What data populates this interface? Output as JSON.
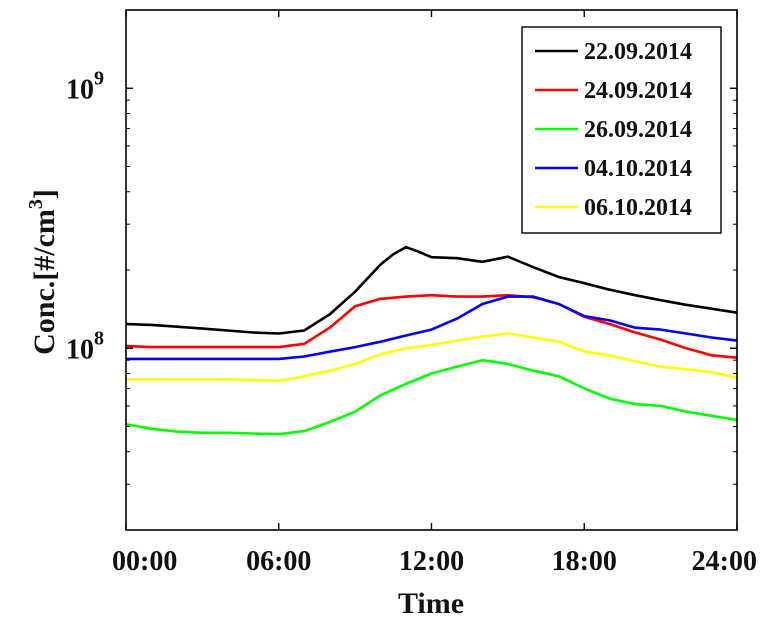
{
  "chart_data": {
    "type": "line",
    "xlabel": "Time",
    "ylabel_main": "Conc.[#/cm",
    "ylabel_sup": "3",
    "ylabel_close": "]",
    "y_scale": "log",
    "xlim": [
      0,
      24
    ],
    "ylim": [
      20000000,
      2000000000
    ],
    "x_ticks": [
      0,
      6,
      12,
      18,
      24
    ],
    "x_tick_labels": [
      "00:00",
      "06:00",
      "12:00",
      "18:00",
      "24:00"
    ],
    "y_tick_labels": [
      {
        "value": 100000000,
        "base": "10",
        "exp": "8"
      },
      {
        "value": 1000000000,
        "base": "10",
        "exp": "9"
      }
    ],
    "grid": false,
    "legend_placement": "top-right",
    "series": [
      {
        "name": "22.09.2014",
        "color": "#000000",
        "x": [
          0,
          1,
          2,
          3,
          4,
          5,
          6,
          7,
          8,
          9,
          10,
          10.5,
          11,
          11.5,
          12,
          13,
          14,
          15,
          16,
          17,
          18,
          19,
          20,
          21,
          22,
          23,
          24
        ],
        "y": [
          124000000,
          123000000,
          121000000,
          119000000,
          117000000,
          115000000,
          114000000,
          117000000,
          135000000,
          165000000,
          210000000,
          230000000,
          245000000,
          235000000,
          224000000,
          222000000,
          215000000,
          225000000,
          205000000,
          188000000,
          178000000,
          168000000,
          160000000,
          153000000,
          147000000,
          142000000,
          137000000
        ]
      },
      {
        "name": "24.09.2014",
        "color": "#ff0000",
        "x": [
          0,
          1,
          2,
          3,
          4,
          5,
          6,
          7,
          8,
          9,
          10,
          11,
          12,
          13,
          14,
          15,
          16,
          17,
          18,
          19,
          20,
          21,
          22,
          23,
          24
        ],
        "y": [
          102000000,
          101000000,
          101000000,
          101000000,
          101000000,
          101000000,
          101000000,
          104000000,
          120000000,
          145000000,
          155000000,
          158000000,
          160000000,
          158000000,
          158000000,
          160000000,
          157000000,
          148000000,
          132000000,
          124000000,
          115000000,
          108000000,
          100000000,
          94000000,
          92000000
        ]
      },
      {
        "name": "26.09.2014",
        "color": "#00ff00",
        "x": [
          0,
          1,
          2,
          3,
          4,
          5,
          6,
          7,
          8,
          9,
          10,
          11,
          12,
          13,
          14,
          15,
          16,
          17,
          18,
          19,
          20,
          21,
          22,
          23,
          24
        ],
        "y": [
          51000000,
          49000000,
          47800000,
          47300000,
          47300000,
          47000000,
          46700000,
          48000000,
          52000000,
          57000000,
          66000000,
          73000000,
          80000000,
          85000000,
          90000000,
          87000000,
          82000000,
          78000000,
          70000000,
          64000000,
          61000000,
          60000000,
          57000000,
          55000000,
          53000000
        ]
      },
      {
        "name": "04.10.2014",
        "color": "#0000ff",
        "x": [
          0,
          1,
          2,
          3,
          4,
          5,
          6,
          7,
          8,
          9,
          10,
          11,
          12,
          13,
          14,
          15,
          16,
          17,
          18,
          19,
          20,
          21,
          22,
          23,
          24
        ],
        "y": [
          91000000,
          91000000,
          91000000,
          91000000,
          91000000,
          91000000,
          91000000,
          93000000,
          97000000,
          101000000,
          106000000,
          112000000,
          118000000,
          130000000,
          148000000,
          158000000,
          158000000,
          148000000,
          133000000,
          128000000,
          120000000,
          118000000,
          114000000,
          110000000,
          107000000
        ]
      },
      {
        "name": "06.10.2014",
        "color": "#ffff00",
        "x": [
          0,
          1,
          2,
          3,
          4,
          5,
          6,
          7,
          8,
          9,
          10,
          11,
          12,
          13,
          14,
          15,
          16,
          17,
          18,
          19,
          20,
          21,
          22,
          23,
          24
        ],
        "y": [
          76000000,
          76000000,
          76000000,
          76000000,
          76000000,
          75500000,
          75000000,
          78000000,
          82000000,
          87000000,
          95000000,
          100000000,
          103000000,
          107000000,
          111000000,
          114000000,
          110000000,
          106000000,
          97000000,
          94000000,
          89000000,
          85000000,
          83000000,
          81000000,
          77000000
        ]
      }
    ]
  }
}
